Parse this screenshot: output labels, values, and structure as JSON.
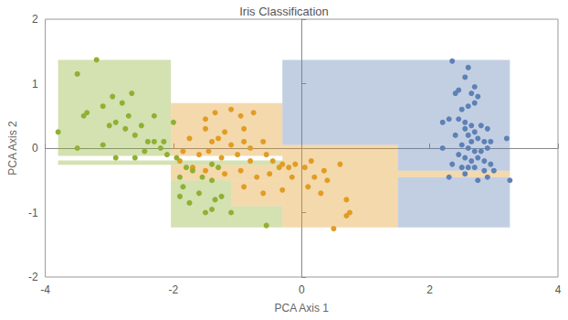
{
  "chart_data": {
    "type": "scatter",
    "title": "Iris Classification",
    "x_label": "PCA Axis 1",
    "y_label": "PCA Axis 2",
    "xlim": [
      -4,
      4
    ],
    "xticks": [
      -4,
      -2,
      0,
      2,
      4
    ],
    "ylim": [
      -2,
      2
    ],
    "yticks": [
      -2,
      -1,
      0,
      1,
      2
    ],
    "grid": false,
    "series": [
      {
        "color": "#5E81B5",
        "regions": [
          [
            -0.3,
            3.25,
            0.05,
            1.37
          ],
          [
            1.5,
            3.25,
            -0.35,
            0.05
          ],
          [
            1.5,
            3.25,
            -1.23,
            -0.45
          ]
        ],
        "values": [
          [
            2.35,
            1.35
          ],
          [
            2.6,
            1.25
          ],
          [
            2.55,
            1.1
          ],
          [
            2.7,
            0.95
          ],
          [
            2.4,
            0.85
          ],
          [
            2.45,
            0.9
          ],
          [
            2.65,
            0.85
          ],
          [
            2.75,
            0.8
          ],
          [
            2.7,
            0.7
          ],
          [
            2.5,
            0.6
          ],
          [
            2.6,
            0.65
          ],
          [
            2.3,
            0.45
          ],
          [
            2.45,
            0.45
          ],
          [
            2.55,
            0.4
          ],
          [
            2.65,
            0.35
          ],
          [
            2.8,
            0.35
          ],
          [
            2.9,
            0.3
          ],
          [
            2.2,
            0.4
          ],
          [
            2.55,
            0.3
          ],
          [
            2.7,
            0.25
          ],
          [
            2.6,
            0.2
          ],
          [
            2.75,
            0.15
          ],
          [
            2.85,
            0.1
          ],
          [
            2.65,
            0.1
          ],
          [
            2.5,
            0.05
          ],
          [
            2.6,
            0.0
          ],
          [
            2.7,
            -0.05
          ],
          [
            2.8,
            -0.05
          ],
          [
            2.9,
            0.0
          ],
          [
            3.2,
            0.15
          ],
          [
            2.45,
            -0.1
          ],
          [
            2.55,
            -0.15
          ],
          [
            2.65,
            -0.2
          ],
          [
            2.75,
            -0.15
          ],
          [
            2.85,
            -0.2
          ],
          [
            2.95,
            -0.25
          ],
          [
            2.35,
            -0.25
          ],
          [
            2.5,
            -0.3
          ],
          [
            2.7,
            -0.3
          ],
          [
            2.6,
            -0.3
          ],
          [
            3.0,
            -0.35
          ],
          [
            2.85,
            -0.35
          ],
          [
            2.55,
            -0.4
          ],
          [
            2.3,
            -0.45
          ],
          [
            2.75,
            -0.5
          ],
          [
            3.25,
            -0.5
          ],
          [
            2.2,
            0.0
          ],
          [
            2.95,
            0.1
          ],
          [
            2.4,
            0.2
          ],
          [
            2.9,
            -0.45
          ]
        ]
      },
      {
        "color": "#E19C24",
        "regions": [
          [
            -2.04,
            -0.3,
            -0.12,
            0.7
          ],
          [
            -2.04,
            -0.3,
            -0.5,
            -0.26
          ],
          [
            -0.3,
            1.5,
            -1.23,
            0.05
          ],
          [
            1.5,
            3.25,
            -0.45,
            -0.35
          ],
          [
            -1.1,
            -0.3,
            -0.9,
            -0.5
          ]
        ],
        "values": [
          [
            -1.5,
            0.45
          ],
          [
            -1.35,
            0.55
          ],
          [
            -1.1,
            0.6
          ],
          [
            -0.95,
            0.5
          ],
          [
            -0.75,
            0.55
          ],
          [
            -1.5,
            0.3
          ],
          [
            -1.2,
            0.25
          ],
          [
            -0.9,
            0.3
          ],
          [
            -1.75,
            0.15
          ],
          [
            -1.4,
            0.1
          ],
          [
            -1.3,
            0.15
          ],
          [
            -1.1,
            0.05
          ],
          [
            -0.9,
            0.1
          ],
          [
            -0.8,
            0.0
          ],
          [
            -0.6,
            0.1
          ],
          [
            -1.85,
            -0.05
          ],
          [
            -1.6,
            -0.1
          ],
          [
            -1.45,
            -0.05
          ],
          [
            -1.25,
            -0.15
          ],
          [
            -1.0,
            -0.1
          ],
          [
            -0.8,
            -0.2
          ],
          [
            -0.55,
            -0.1
          ],
          [
            -0.45,
            -0.2
          ],
          [
            -0.3,
            -0.25
          ],
          [
            -0.2,
            -0.3
          ],
          [
            -0.1,
            -0.25
          ],
          [
            0.05,
            -0.3
          ],
          [
            0.15,
            -0.2
          ],
          [
            -1.7,
            -0.3
          ],
          [
            -1.5,
            -0.35
          ],
          [
            -1.2,
            -0.4
          ],
          [
            -0.95,
            -0.35
          ],
          [
            -0.7,
            -0.45
          ],
          [
            -0.5,
            -0.4
          ],
          [
            -0.35,
            -0.3
          ],
          [
            -0.15,
            -0.45
          ],
          [
            0.2,
            -0.45
          ],
          [
            0.35,
            -0.35
          ],
          [
            0.6,
            -0.25
          ],
          [
            -0.9,
            -0.6
          ],
          [
            -0.6,
            -0.7
          ],
          [
            -0.3,
            -0.65
          ],
          [
            0.1,
            -0.6
          ],
          [
            0.3,
            -0.7
          ],
          [
            0.7,
            -0.8
          ],
          [
            0.75,
            -1.0
          ],
          [
            0.7,
            -1.05
          ],
          [
            0.5,
            -1.25
          ],
          [
            -1.9,
            -0.2
          ],
          [
            0.4,
            -0.5
          ]
        ]
      },
      {
        "color": "#8FB032",
        "regions": [
          [
            -3.8,
            -2.04,
            -0.12,
            1.37
          ],
          [
            -3.8,
            -0.3,
            -0.26,
            -0.19
          ],
          [
            -2.04,
            -1.1,
            -1.23,
            -0.5
          ],
          [
            -1.1,
            -0.3,
            -1.23,
            -0.9
          ]
        ],
        "values": [
          [
            -3.2,
            1.37
          ],
          [
            -3.5,
            1.15
          ],
          [
            -2.95,
            0.8
          ],
          [
            -3.1,
            0.65
          ],
          [
            -3.4,
            0.5
          ],
          [
            -3.35,
            0.55
          ],
          [
            -2.8,
            0.7
          ],
          [
            -2.7,
            0.5
          ],
          [
            -2.9,
            0.4
          ],
          [
            -3.0,
            0.35
          ],
          [
            -2.5,
            0.35
          ],
          [
            -2.6,
            0.2
          ],
          [
            -2.4,
            0.1
          ],
          [
            -2.3,
            0.1
          ],
          [
            -2.2,
            0.0
          ],
          [
            -2.15,
            0.1
          ],
          [
            -2.45,
            -0.05
          ],
          [
            -2.6,
            -0.15
          ],
          [
            -2.1,
            -0.1
          ],
          [
            -3.8,
            0.25
          ],
          [
            -3.5,
            0.0
          ],
          [
            -3.1,
            0.05
          ],
          [
            -2.9,
            -0.15
          ],
          [
            -1.95,
            -0.15
          ],
          [
            -1.8,
            -0.3
          ],
          [
            -1.7,
            -0.35
          ],
          [
            -1.55,
            -0.45
          ],
          [
            -1.4,
            -0.5
          ],
          [
            -1.3,
            -0.3
          ],
          [
            -1.9,
            -0.45
          ],
          [
            -1.85,
            -0.6
          ],
          [
            -1.6,
            -0.7
          ],
          [
            -1.35,
            -0.8
          ],
          [
            -1.25,
            -0.75
          ],
          [
            -1.9,
            -0.75
          ],
          [
            -1.75,
            -0.85
          ],
          [
            -1.5,
            -1.0
          ],
          [
            -1.4,
            -0.95
          ],
          [
            -1.1,
            -1.0
          ],
          [
            -0.55,
            -1.2
          ],
          [
            -2.3,
            0.5
          ],
          [
            -2.0,
            0.4
          ],
          [
            -2.65,
            0.85
          ],
          [
            -1.4,
            -0.25
          ],
          [
            -2.75,
            0.3
          ]
        ]
      }
    ]
  }
}
